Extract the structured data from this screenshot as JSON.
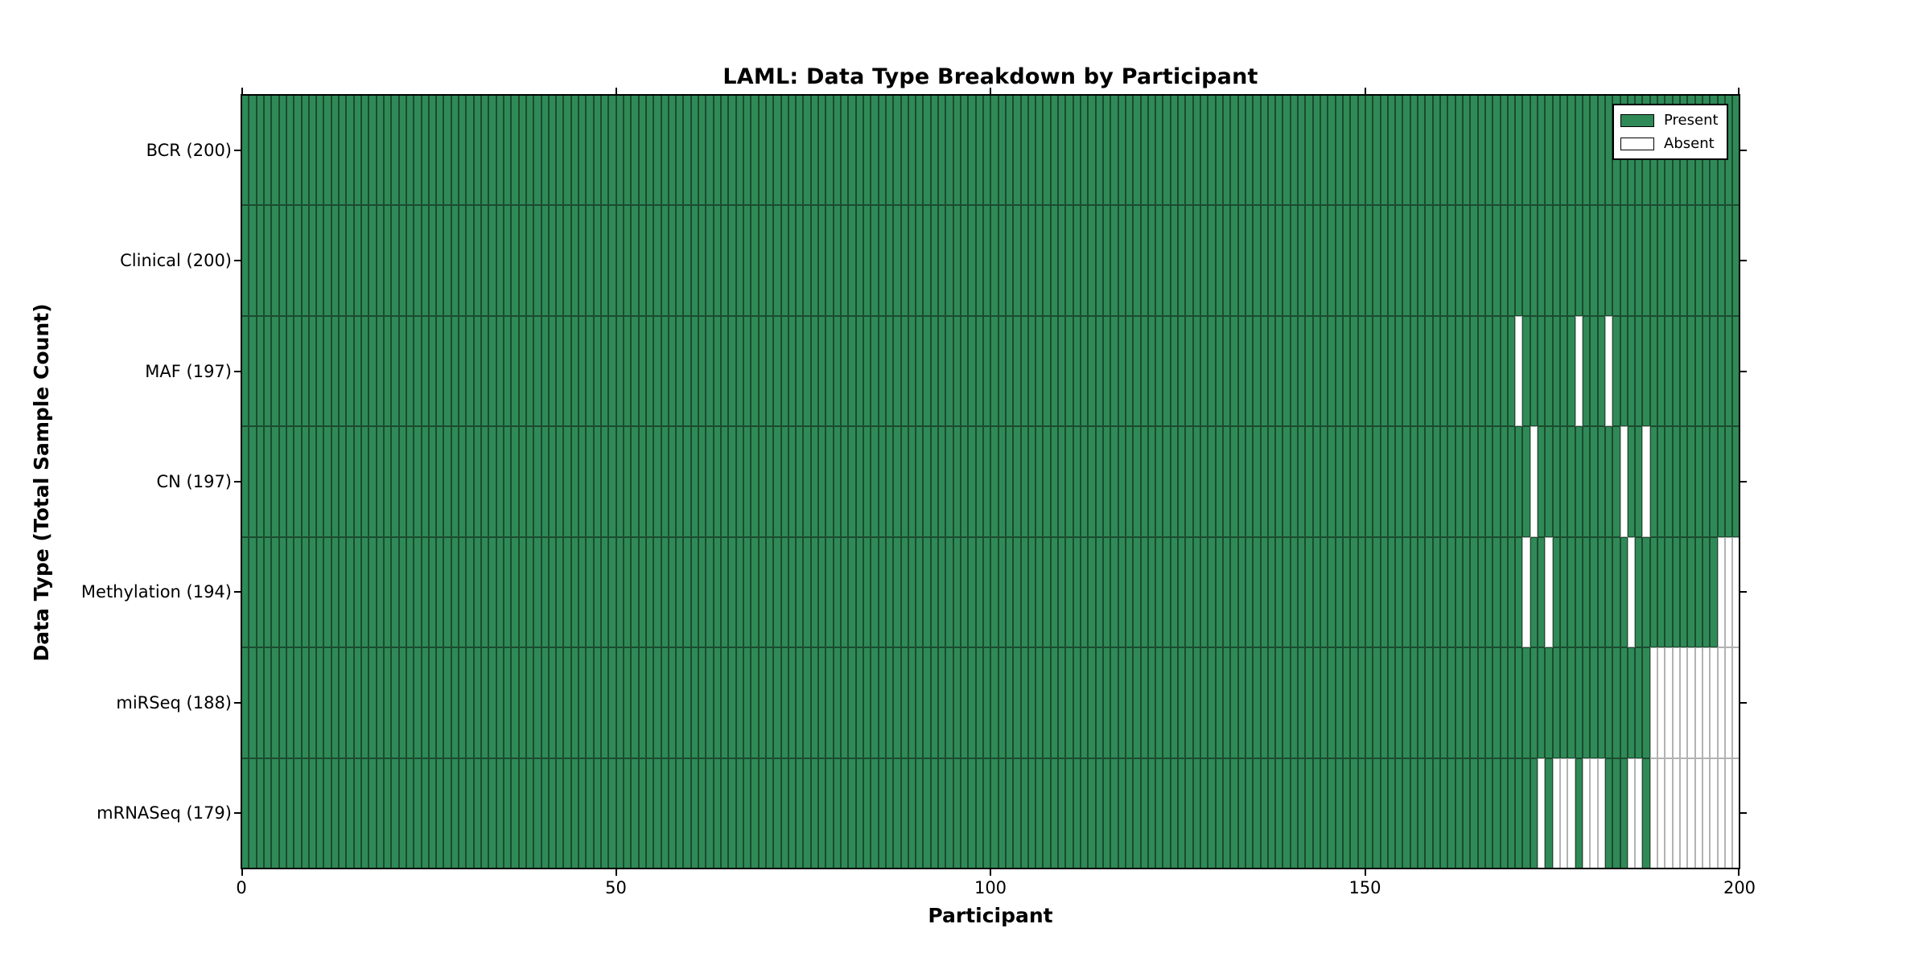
{
  "chart_data": {
    "type": "heatmap",
    "title": "LAML: Data Type Breakdown by Participant",
    "xlabel": "Participant",
    "ylabel": "Data Type (Total Sample Count)",
    "x_range": [
      0,
      200
    ],
    "x_ticks": [
      0,
      50,
      100,
      150,
      200
    ],
    "n_participants": 200,
    "grid": false,
    "legend": {
      "position": "upper right",
      "entries": [
        {
          "label": "Present",
          "color": "#2f8a57"
        },
        {
          "label": "Absent",
          "color": "#ffffff"
        }
      ]
    },
    "colors": {
      "present_fill": "#2f8a57",
      "present_edge": "#1b4b2f",
      "absent_fill": "#ffffff",
      "absent_edge": "#b3b3b3",
      "frame": "#000000"
    },
    "rows": [
      {
        "label": "BCR",
        "present_count": 200,
        "display": "BCR (200)",
        "absent_participants": []
      },
      {
        "label": "Clinical",
        "present_count": 200,
        "display": "Clinical (200)",
        "absent_participants": []
      },
      {
        "label": "MAF",
        "present_count": 197,
        "display": "MAF (197)",
        "absent_participants": [
          170,
          178,
          182
        ]
      },
      {
        "label": "CN",
        "present_count": 197,
        "display": "CN (197)",
        "absent_participants": [
          172,
          184,
          187
        ]
      },
      {
        "label": "Methylation",
        "present_count": 194,
        "display": "Methylation (194)",
        "absent_participants": [
          171,
          174,
          185,
          197,
          198,
          199
        ]
      },
      {
        "label": "miRSeq",
        "present_count": 188,
        "display": "miRSeq (188)",
        "absent_participants": [
          188,
          189,
          190,
          191,
          192,
          193,
          194,
          195,
          196,
          197,
          198,
          199
        ]
      },
      {
        "label": "mRNASeq",
        "present_count": 179,
        "display": "mRNASeq (179)",
        "absent_participants": [
          173,
          175,
          176,
          177,
          179,
          180,
          181,
          185,
          186,
          188,
          189,
          190,
          191,
          192,
          193,
          194,
          195,
          196,
          197,
          198,
          199
        ]
      }
    ]
  }
}
